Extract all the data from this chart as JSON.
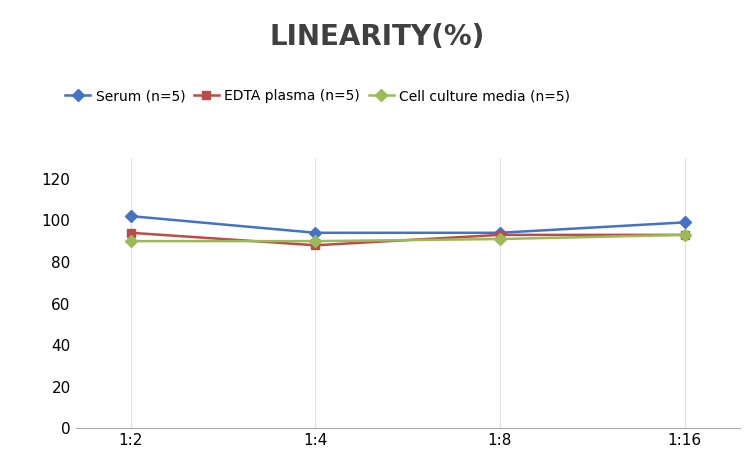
{
  "title": "LINEARITY(%)",
  "title_fontsize": 20,
  "title_fontweight": "bold",
  "x_labels": [
    "1:2",
    "1:4",
    "1:8",
    "1:16"
  ],
  "x_positions": [
    0,
    1,
    2,
    3
  ],
  "series": [
    {
      "label": "Serum (n=5)",
      "values": [
        102,
        94,
        94,
        99
      ],
      "color": "#4472C4",
      "marker": "D",
      "markersize": 6,
      "linewidth": 1.8
    },
    {
      "label": "EDTA plasma (n=5)",
      "values": [
        94,
        88,
        93,
        93
      ],
      "color": "#BE4B48",
      "marker": "s",
      "markersize": 6,
      "linewidth": 1.8
    },
    {
      "label": "Cell culture media (n=5)",
      "values": [
        90,
        90,
        91,
        93
      ],
      "color": "#9BBB59",
      "marker": "D",
      "markersize": 6,
      "linewidth": 1.8
    }
  ],
  "ylim": [
    0,
    130
  ],
  "yticks": [
    0,
    20,
    40,
    60,
    80,
    100,
    120
  ],
  "grid_color": "#E0E0E0",
  "background_color": "#FFFFFF",
  "legend_fontsize": 10,
  "tick_fontsize": 11,
  "title_color": "#404040"
}
